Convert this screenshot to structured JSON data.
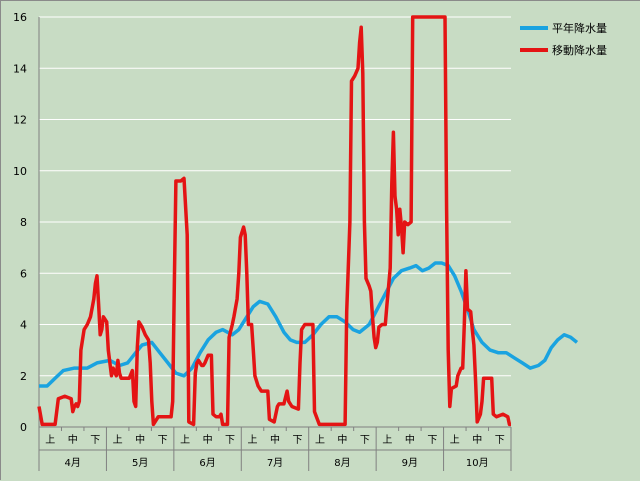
{
  "chart_data": {
    "type": "line",
    "title": "",
    "xlabel": "",
    "ylabel": "",
    "ylim": [
      0,
      16
    ],
    "yticks": [
      0,
      2,
      4,
      6,
      8,
      10,
      12,
      14,
      16
    ],
    "grid": true,
    "legend_position": "top-right",
    "months": [
      "4月",
      "5月",
      "6月",
      "7月",
      "8月",
      "9月",
      "10月"
    ],
    "decades": [
      "上",
      "中",
      "下"
    ],
    "x_unit": "day index from start of April (0-213)",
    "series": [
      {
        "name": "平年降水量",
        "color": "#1aa3e0",
        "points": [
          [
            0,
            1.6
          ],
          [
            5,
            1.6
          ],
          [
            10,
            1.9
          ],
          [
            15,
            2.2
          ],
          [
            22,
            2.3
          ],
          [
            30,
            2.3
          ],
          [
            36,
            2.5
          ],
          [
            44,
            2.6
          ],
          [
            50,
            2.4
          ],
          [
            55,
            2.5
          ],
          [
            60,
            2.9
          ],
          [
            64,
            3.2
          ],
          [
            70,
            3.3
          ],
          [
            75,
            2.9
          ],
          [
            80,
            2.5
          ],
          [
            85,
            2.1
          ],
          [
            90,
            2.0
          ],
          [
            95,
            2.3
          ],
          [
            100,
            2.9
          ],
          [
            105,
            3.4
          ],
          [
            110,
            3.7
          ],
          [
            114,
            3.8
          ],
          [
            120,
            3.6
          ],
          [
            124,
            3.8
          ],
          [
            128,
            4.2
          ],
          [
            133,
            4.7
          ],
          [
            137,
            4.9
          ],
          [
            142,
            4.8
          ],
          [
            147,
            4.3
          ],
          [
            152,
            3.7
          ],
          [
            156,
            3.4
          ],
          [
            160,
            3.3
          ],
          [
            165,
            3.3
          ],
          [
            170,
            3.6
          ],
          [
            175,
            4.0
          ],
          [
            180,
            4.3
          ],
          [
            185,
            4.3
          ],
          [
            190,
            4.1
          ],
          [
            195,
            3.8
          ],
          [
            199,
            3.7
          ],
          [
            205,
            4.0
          ],
          [
            210,
            4.6
          ],
          [
            215,
            5.2
          ],
          [
            220,
            5.8
          ],
          [
            225,
            6.1
          ],
          [
            230,
            6.2
          ],
          [
            234,
            6.3
          ],
          [
            238,
            6.1
          ],
          [
            242,
            6.2
          ],
          [
            246,
            6.4
          ],
          [
            250,
            6.4
          ],
          [
            254,
            6.3
          ],
          [
            258,
            5.9
          ],
          [
            262,
            5.3
          ],
          [
            266,
            4.6
          ],
          [
            270,
            3.8
          ],
          [
            275,
            3.3
          ],
          [
            280,
            3.0
          ],
          [
            285,
            2.9
          ],
          [
            290,
            2.9
          ],
          [
            295,
            2.7
          ],
          [
            300,
            2.5
          ],
          [
            305,
            2.3
          ],
          [
            310,
            2.4
          ],
          [
            314,
            2.6
          ],
          [
            318,
            3.1
          ],
          [
            322,
            3.4
          ],
          [
            326,
            3.6
          ],
          [
            330,
            3.5
          ],
          [
            334,
            3.3
          ]
        ]
      },
      {
        "name": "移動降水量",
        "color": "#e41414",
        "points": [
          [
            0,
            0.8
          ],
          [
            2,
            0.1
          ],
          [
            6,
            0.1
          ],
          [
            10,
            0.1
          ],
          [
            11,
            0.6
          ],
          [
            12,
            1.1
          ],
          [
            16,
            1.2
          ],
          [
            20,
            1.1
          ],
          [
            21,
            0.6
          ],
          [
            22,
            0.8
          ],
          [
            23,
            0.9
          ],
          [
            24,
            0.8
          ],
          [
            25,
            1.0
          ],
          [
            26,
            3.0
          ],
          [
            28,
            3.8
          ],
          [
            30,
            4.0
          ],
          [
            32,
            4.3
          ],
          [
            34,
            5.0
          ],
          [
            35,
            5.6
          ],
          [
            36,
            5.9
          ],
          [
            37,
            4.8
          ],
          [
            38,
            3.6
          ],
          [
            39,
            3.8
          ],
          [
            40,
            4.3
          ],
          [
            42,
            4.1
          ],
          [
            43,
            3.0
          ],
          [
            45,
            2.0
          ],
          [
            46,
            2.3
          ],
          [
            48,
            2.0
          ],
          [
            49,
            2.6
          ],
          [
            50,
            2.1
          ],
          [
            51,
            1.9
          ],
          [
            53,
            1.9
          ],
          [
            56,
            1.9
          ],
          [
            58,
            2.2
          ],
          [
            59,
            1.0
          ],
          [
            60,
            0.8
          ],
          [
            61,
            3.1
          ],
          [
            62,
            4.1
          ],
          [
            64,
            3.9
          ],
          [
            66,
            3.6
          ],
          [
            68,
            3.4
          ],
          [
            69,
            2.5
          ],
          [
            70,
            1.0
          ],
          [
            71,
            0.1
          ],
          [
            72,
            0.2
          ],
          [
            74,
            0.4
          ],
          [
            80,
            0.4
          ],
          [
            82,
            0.4
          ],
          [
            83,
            1.0
          ],
          [
            84,
            5.5
          ],
          [
            85,
            9.6
          ],
          [
            88,
            9.6
          ],
          [
            90,
            9.7
          ],
          [
            92,
            7.5
          ],
          [
            93,
            0.2
          ],
          [
            96,
            0.1
          ],
          [
            97,
            2.1
          ],
          [
            98,
            2.5
          ],
          [
            99,
            2.6
          ],
          [
            101,
            2.4
          ],
          [
            102,
            2.4
          ],
          [
            103,
            2.5
          ],
          [
            105,
            2.8
          ],
          [
            107,
            2.8
          ],
          [
            108,
            0.5
          ],
          [
            110,
            0.4
          ],
          [
            112,
            0.4
          ],
          [
            113,
            0.5
          ],
          [
            114,
            0.1
          ],
          [
            117,
            0.1
          ],
          [
            118,
            3.5
          ],
          [
            120,
            4.0
          ],
          [
            121,
            4.3
          ],
          [
            123,
            5.0
          ],
          [
            124,
            6.0
          ],
          [
            125,
            7.4
          ],
          [
            127,
            7.8
          ],
          [
            128,
            7.5
          ],
          [
            129,
            6.0
          ],
          [
            130,
            4.0
          ],
          [
            132,
            4.0
          ],
          [
            133,
            3.0
          ],
          [
            134,
            2.0
          ],
          [
            136,
            1.6
          ],
          [
            138,
            1.4
          ],
          [
            142,
            1.4
          ],
          [
            143,
            0.3
          ],
          [
            146,
            0.2
          ],
          [
            148,
            0.8
          ],
          [
            149,
            0.9
          ],
          [
            152,
            0.9
          ],
          [
            154,
            1.4
          ],
          [
            155,
            1.0
          ],
          [
            157,
            0.8
          ],
          [
            161,
            0.7
          ],
          [
            162,
            2.5
          ],
          [
            163,
            3.8
          ],
          [
            165,
            4.0
          ],
          [
            166,
            4.0
          ],
          [
            170,
            4.0
          ],
          [
            171,
            0.6
          ],
          [
            174,
            0.1
          ],
          [
            180,
            0.1
          ],
          [
            184,
            0.1
          ],
          [
            187,
            0.1
          ],
          [
            190,
            0.1
          ],
          [
            191,
            4.5
          ],
          [
            193,
            8.0
          ],
          [
            194,
            13.5
          ],
          [
            196,
            13.7
          ],
          [
            198,
            14.0
          ],
          [
            199,
            15.0
          ],
          [
            200,
            15.6
          ],
          [
            201,
            13.8
          ],
          [
            202,
            8.0
          ],
          [
            203,
            5.8
          ],
          [
            205,
            5.5
          ],
          [
            206,
            5.3
          ],
          [
            207,
            4.3
          ],
          [
            208,
            3.5
          ],
          [
            209,
            3.1
          ],
          [
            210,
            3.3
          ],
          [
            211,
            3.9
          ],
          [
            213,
            4.0
          ],
          [
            214,
            4.0
          ],
          [
            215,
            4.0
          ],
          [
            216,
            4.8
          ],
          [
            217,
            5.5
          ],
          [
            218,
            6.2
          ],
          [
            219,
            9.5
          ],
          [
            220,
            11.5
          ],
          [
            221,
            9.0
          ],
          [
            222,
            8.5
          ],
          [
            223,
            7.5
          ],
          [
            224,
            8.5
          ],
          [
            225,
            7.8
          ],
          [
            226,
            6.8
          ],
          [
            227,
            8.0
          ],
          [
            229,
            7.9
          ],
          [
            231,
            8.0
          ],
          [
            232,
            16.0
          ],
          [
            236,
            16.0
          ],
          [
            237,
            16.0
          ],
          [
            238,
            16.0
          ],
          [
            250,
            16.0
          ],
          [
            252,
            16.0
          ],
          [
            253,
            8.5
          ],
          [
            254,
            3.0
          ],
          [
            255,
            0.8
          ],
          [
            256,
            1.5
          ],
          [
            259,
            1.6
          ],
          [
            260,
            2.0
          ],
          [
            262,
            2.3
          ],
          [
            263,
            2.3
          ],
          [
            264,
            4.0
          ],
          [
            265,
            6.1
          ],
          [
            266,
            4.6
          ],
          [
            268,
            4.5
          ],
          [
            269,
            3.8
          ],
          [
            270,
            3.2
          ],
          [
            271,
            1.8
          ],
          [
            272,
            0.2
          ],
          [
            274,
            0.5
          ],
          [
            275,
            1.0
          ],
          [
            276,
            1.9
          ],
          [
            279,
            1.9
          ],
          [
            281,
            1.9
          ],
          [
            282,
            0.5
          ],
          [
            284,
            0.4
          ],
          [
            288,
            0.5
          ],
          [
            291,
            0.4
          ],
          [
            292,
            0.1
          ],
          [
            293,
            0.1
          ]
        ]
      }
    ]
  }
}
